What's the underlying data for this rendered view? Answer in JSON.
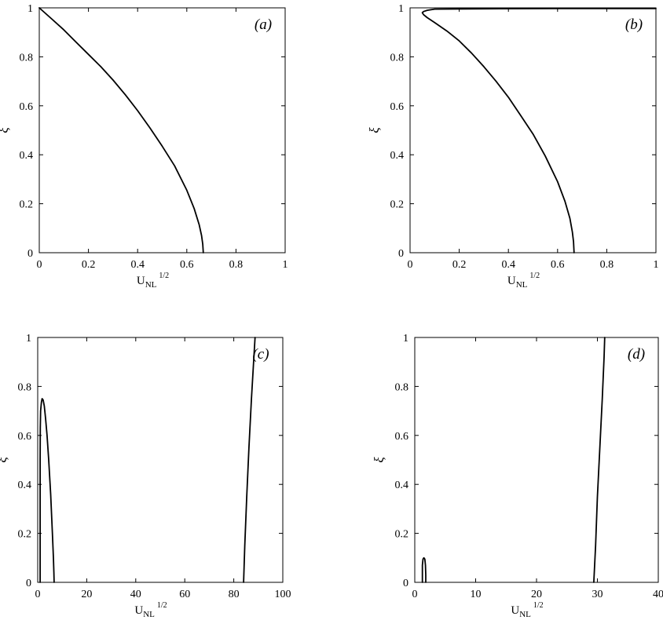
{
  "chart_data": [
    {
      "panel": "(a)",
      "type": "line",
      "xlabel": "U",
      "xlabel_sub": "NL",
      "xlabel_sup": "1/2",
      "ylabel": "ξ",
      "xlim": [
        0,
        1
      ],
      "ylim": [
        0,
        1
      ],
      "xticks": [
        0,
        0.2,
        0.4,
        0.6,
        0.8,
        1
      ],
      "xtick_labels": [
        "0",
        "0.2",
        "0.4",
        "0.6",
        "0.8",
        "1"
      ],
      "yticks": [
        0,
        0.2,
        0.4,
        0.6,
        0.8,
        1
      ],
      "ytick_labels": [
        "0",
        "0.2",
        "0.4",
        "0.6",
        "0.8",
        "1"
      ],
      "series": [
        {
          "x": [
            0.0,
            0.05,
            0.1,
            0.15,
            0.2,
            0.25,
            0.3,
            0.35,
            0.4,
            0.45,
            0.5,
            0.55,
            0.6,
            0.63,
            0.65,
            0.66,
            0.665,
            0.667
          ],
          "y": [
            1.0,
            0.955,
            0.91,
            0.86,
            0.81,
            0.76,
            0.705,
            0.645,
            0.58,
            0.51,
            0.435,
            0.355,
            0.255,
            0.18,
            0.115,
            0.07,
            0.035,
            0.0
          ]
        }
      ]
    },
    {
      "panel": "(b)",
      "type": "line",
      "xlabel": "U",
      "xlabel_sub": "NL",
      "xlabel_sup": "1/2",
      "ylabel": "ξ",
      "xlim": [
        0,
        1
      ],
      "ylim": [
        0,
        1
      ],
      "xticks": [
        0,
        0.2,
        0.4,
        0.6,
        0.8,
        1
      ],
      "xtick_labels": [
        "0",
        "0.2",
        "0.4",
        "0.6",
        "0.8",
        "1"
      ],
      "yticks": [
        0,
        0.2,
        0.4,
        0.6,
        0.8,
        1
      ],
      "ytick_labels": [
        "0",
        "0.2",
        "0.4",
        "0.6",
        "0.8",
        "1"
      ],
      "series": [
        {
          "x": [
            1.0,
            0.6,
            0.3,
            0.1,
            0.07,
            0.055,
            0.05,
            0.055,
            0.07,
            0.1,
            0.15,
            0.2,
            0.25,
            0.3,
            0.35,
            0.4,
            0.45,
            0.5,
            0.55,
            0.6,
            0.63,
            0.65,
            0.66,
            0.665,
            0.667
          ],
          "y": [
            0.997,
            0.997,
            0.996,
            0.995,
            0.99,
            0.985,
            0.98,
            0.972,
            0.96,
            0.94,
            0.905,
            0.865,
            0.815,
            0.76,
            0.7,
            0.635,
            0.56,
            0.485,
            0.395,
            0.29,
            0.21,
            0.14,
            0.085,
            0.045,
            0.0
          ]
        }
      ]
    },
    {
      "panel": "(c)",
      "type": "line",
      "xlabel": "U",
      "xlabel_sub": "NL",
      "xlabel_sup": "1/2",
      "ylabel": "ξ",
      "xlim": [
        0,
        100
      ],
      "ylim": [
        0,
        1
      ],
      "xticks": [
        0,
        20,
        40,
        60,
        80,
        100
      ],
      "xtick_labels": [
        "0",
        "20",
        "40",
        "60",
        "80",
        "100"
      ],
      "yticks": [
        0,
        0.2,
        0.4,
        0.6,
        0.8,
        1
      ],
      "ytick_labels": [
        "0",
        "0.2",
        "0.4",
        "0.6",
        "0.8",
        "1"
      ],
      "series": [
        {
          "x": [
            1.0,
            1.0,
            1.05,
            1.2,
            1.5,
            1.8,
            2.2,
            2.7,
            3.2,
            3.8,
            4.5,
            5.3,
            6.0,
            6.4,
            6.6,
            6.7
          ],
          "y": [
            0.0,
            0.5,
            0.63,
            0.7,
            0.735,
            0.75,
            0.745,
            0.72,
            0.67,
            0.6,
            0.5,
            0.36,
            0.2,
            0.1,
            0.04,
            0.0
          ]
        },
        {
          "x": [
            84.0,
            84.5,
            85.3,
            86.2,
            87.2,
            88.2,
            88.7
          ],
          "y": [
            0.0,
            0.15,
            0.35,
            0.55,
            0.75,
            0.92,
            1.0
          ]
        }
      ]
    },
    {
      "panel": "(d)",
      "type": "line",
      "xlabel": "U",
      "xlabel_sub": "NL",
      "xlabel_sup": "1/2",
      "ylabel": "ξ",
      "xlim": [
        0,
        40
      ],
      "ylim": [
        0,
        1
      ],
      "xticks": [
        0,
        10,
        20,
        30,
        40
      ],
      "xtick_labels": [
        "0",
        "10",
        "20",
        "30",
        "40"
      ],
      "yticks": [
        0,
        0.2,
        0.4,
        0.6,
        0.8,
        1
      ],
      "ytick_labels": [
        "0",
        "0.2",
        "0.4",
        "0.6",
        "0.8",
        "1"
      ],
      "series": [
        {
          "x": [
            1.25,
            1.25,
            1.35,
            1.5,
            1.65,
            1.75,
            1.8,
            1.8
          ],
          "y": [
            0.0,
            0.07,
            0.095,
            0.1,
            0.095,
            0.07,
            0.03,
            0.0
          ]
        },
        {
          "x": [
            29.4,
            29.7,
            30.0,
            30.4,
            30.8,
            31.1,
            31.2
          ],
          "y": [
            0.0,
            0.15,
            0.35,
            0.55,
            0.75,
            0.92,
            1.0
          ]
        }
      ]
    }
  ]
}
